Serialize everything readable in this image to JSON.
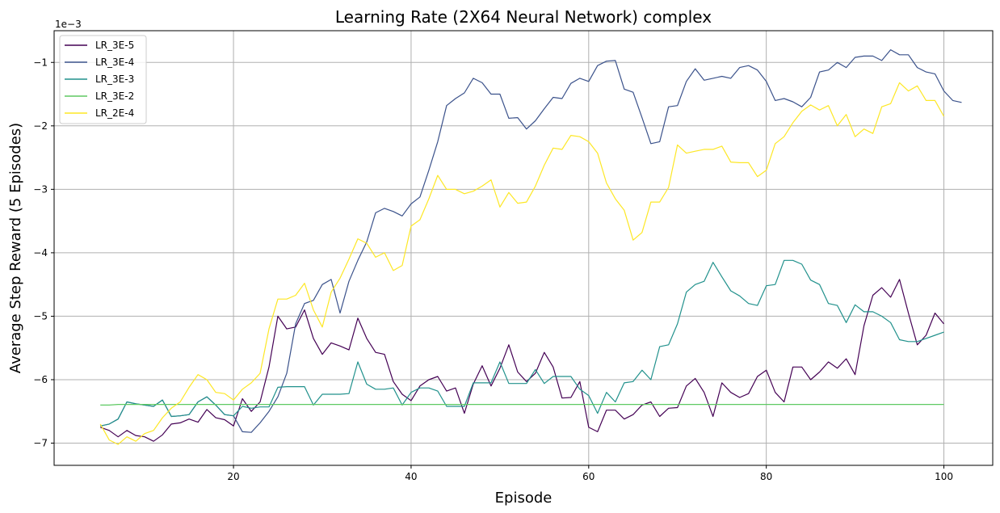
{
  "chart_data": {
    "type": "line",
    "title": "Learning Rate (2X64 Neural Network) complex",
    "xlabel": "Episode",
    "ylabel": "Average Step Reward (5 Episodes)",
    "y_offset_label": "1e−3",
    "xlim": [
      -0.2,
      105.5
    ],
    "ylim": [
      -7.35,
      -0.5
    ],
    "x_ticks": [
      20,
      40,
      60,
      80,
      100
    ],
    "y_ticks": [
      -7,
      -6,
      -5,
      -4,
      -3,
      -2,
      -1
    ],
    "grid": true,
    "legend_placement": "top-left",
    "x_start": 5,
    "series": [
      {
        "name": "LR_3E-5",
        "color": "#440154",
        "values": [
          -6.75,
          -6.8,
          -6.9,
          -6.8,
          -6.88,
          -6.9,
          -6.97,
          -6.87,
          -6.7,
          -6.68,
          -6.62,
          -6.67,
          -6.47,
          -6.6,
          -6.63,
          -6.73,
          -6.3,
          -6.5,
          -6.35,
          -5.8,
          -5.0,
          -5.2,
          -5.17,
          -4.9,
          -5.35,
          -5.6,
          -5.42,
          -5.47,
          -5.53,
          -5.03,
          -5.35,
          -5.57,
          -5.6,
          -6.03,
          -6.23,
          -6.33,
          -6.1,
          -6.0,
          -5.95,
          -6.18,
          -6.13,
          -6.53,
          -6.07,
          -5.78,
          -6.1,
          -5.82,
          -5.45,
          -5.88,
          -6.03,
          -5.9,
          -5.57,
          -5.8,
          -6.29,
          -6.28,
          -6.03,
          -6.75,
          -6.82,
          -6.48,
          -6.48,
          -6.62,
          -6.55,
          -6.4,
          -6.35,
          -6.58,
          -6.45,
          -6.44,
          -6.1,
          -5.98,
          -6.2,
          -6.58,
          -6.05,
          -6.2,
          -6.28,
          -6.22,
          -5.95,
          -5.85,
          -6.2,
          -6.35,
          -5.8,
          -5.8,
          -6.0,
          -5.88,
          -5.72,
          -5.82,
          -5.67,
          -5.92,
          -5.15,
          -4.67,
          -4.55,
          -4.7,
          -4.42,
          -4.95,
          -5.45,
          -5.3,
          -4.95,
          -5.12
        ]
      },
      {
        "name": "LR_3E-4",
        "color": "#3b528b",
        "values": [
          -6.73,
          -6.7,
          -6.62,
          -6.35,
          -6.38,
          -6.4,
          -6.42,
          -6.32,
          -6.58,
          -6.57,
          -6.55,
          -6.35,
          -6.27,
          -6.4,
          -6.55,
          -6.57,
          -6.82,
          -6.83,
          -6.68,
          -6.5,
          -6.27,
          -5.9,
          -5.12,
          -4.8,
          -4.75,
          -4.5,
          -4.42,
          -4.95,
          -4.45,
          -4.12,
          -3.83,
          -3.37,
          -3.3,
          -3.35,
          -3.42,
          -3.23,
          -3.12,
          -2.7,
          -2.25,
          -1.68,
          -1.57,
          -1.48,
          -1.25,
          -1.32,
          -1.5,
          -1.5,
          -1.88,
          -1.87,
          -2.05,
          -1.92,
          -1.73,
          -1.55,
          -1.57,
          -1.33,
          -1.25,
          -1.3,
          -1.05,
          -0.98,
          -0.97,
          -1.42,
          -1.47,
          -1.87,
          -2.28,
          -2.25,
          -1.7,
          -1.68,
          -1.3,
          -1.1,
          -1.28,
          -1.25,
          -1.22,
          -1.25,
          -1.08,
          -1.05,
          -1.12,
          -1.3,
          -1.6,
          -1.57,
          -1.62,
          -1.7,
          -1.55,
          -1.15,
          -1.12,
          -1.0,
          -1.08,
          -0.92,
          -0.9,
          -0.9,
          -0.97,
          -0.8,
          -0.88,
          -0.88,
          -1.08,
          -1.15,
          -1.18,
          -1.45,
          -1.6,
          -1.63
        ]
      },
      {
        "name": "LR_3E-3",
        "color": "#21918c",
        "values": [
          -6.73,
          -6.7,
          -6.62,
          -6.35,
          -6.38,
          -6.4,
          -6.42,
          -6.32,
          -6.58,
          -6.57,
          -6.55,
          -6.35,
          -6.27,
          -6.4,
          -6.55,
          -6.57,
          -6.42,
          -6.45,
          -6.43,
          -6.43,
          -6.12,
          -6.11,
          -6.11,
          -6.11,
          -6.4,
          -6.23,
          -6.23,
          -6.23,
          -6.22,
          -5.72,
          -6.07,
          -6.15,
          -6.15,
          -6.13,
          -6.4,
          -6.2,
          -6.13,
          -6.13,
          -6.18,
          -6.42,
          -6.42,
          -6.42,
          -6.05,
          -6.05,
          -6.05,
          -5.72,
          -6.06,
          -6.06,
          -6.06,
          -5.84,
          -6.06,
          -5.95,
          -5.95,
          -5.95,
          -6.15,
          -6.25,
          -6.53,
          -6.2,
          -6.35,
          -6.05,
          -6.03,
          -5.85,
          -6.0,
          -5.48,
          -5.45,
          -5.12,
          -4.62,
          -4.5,
          -4.45,
          -4.15,
          -4.38,
          -4.6,
          -4.68,
          -4.8,
          -4.83,
          -4.52,
          -4.5,
          -4.12,
          -4.12,
          -4.18,
          -4.43,
          -4.5,
          -4.8,
          -4.83,
          -5.1,
          -4.82,
          -4.93,
          -4.93,
          -5.0,
          -5.1,
          -5.37,
          -5.4,
          -5.4,
          -5.35,
          -5.3,
          -5.25
        ]
      },
      {
        "name": "LR_3E-2",
        "color": "#5ec962",
        "values": [
          -6.4,
          -6.4,
          -6.39,
          -6.39,
          -6.39,
          -6.39,
          -6.39,
          -6.39,
          -6.39,
          -6.39,
          -6.39,
          -6.39,
          -6.39,
          -6.39,
          -6.39,
          -6.39,
          -6.39,
          -6.39,
          -6.39,
          -6.39,
          -6.39,
          -6.39,
          -6.39,
          -6.39,
          -6.39,
          -6.39,
          -6.39,
          -6.39,
          -6.39,
          -6.39,
          -6.39,
          -6.39,
          -6.39,
          -6.39,
          -6.39,
          -6.39,
          -6.39,
          -6.39,
          -6.39,
          -6.39,
          -6.39,
          -6.39,
          -6.39,
          -6.39,
          -6.39,
          -6.39,
          -6.39,
          -6.39,
          -6.39,
          -6.39,
          -6.39,
          -6.39,
          -6.39,
          -6.39,
          -6.39,
          -6.39,
          -6.39,
          -6.39,
          -6.39,
          -6.39,
          -6.39,
          -6.39,
          -6.39,
          -6.39,
          -6.39,
          -6.39,
          -6.39,
          -6.39,
          -6.39,
          -6.39,
          -6.39,
          -6.39,
          -6.39,
          -6.39,
          -6.39,
          -6.39,
          -6.39,
          -6.39,
          -6.39,
          -6.39,
          -6.39,
          -6.39,
          -6.39,
          -6.39,
          -6.39,
          -6.39,
          -6.39,
          -6.39,
          -6.39,
          -6.39,
          -6.39,
          -6.39,
          -6.39,
          -6.39,
          -6.39,
          -6.39
        ]
      },
      {
        "name": "LR_2E-4",
        "color": "#fde725",
        "values": [
          -6.7,
          -6.95,
          -7.02,
          -6.9,
          -6.97,
          -6.85,
          -6.8,
          -6.6,
          -6.45,
          -6.35,
          -6.12,
          -5.92,
          -6.0,
          -6.2,
          -6.22,
          -6.32,
          -6.15,
          -6.05,
          -5.9,
          -5.2,
          -4.73,
          -4.73,
          -4.67,
          -4.48,
          -4.9,
          -5.17,
          -4.62,
          -4.4,
          -4.1,
          -3.78,
          -3.85,
          -4.07,
          -4.0,
          -4.28,
          -4.2,
          -3.58,
          -3.48,
          -3.15,
          -2.78,
          -3.0,
          -3.0,
          -3.07,
          -3.03,
          -2.95,
          -2.85,
          -3.28,
          -3.05,
          -3.22,
          -3.2,
          -2.95,
          -2.62,
          -2.35,
          -2.37,
          -2.15,
          -2.17,
          -2.25,
          -2.43,
          -2.9,
          -3.15,
          -3.33,
          -3.8,
          -3.68,
          -3.2,
          -3.2,
          -2.97,
          -2.3,
          -2.43,
          -2.4,
          -2.37,
          -2.37,
          -2.32,
          -2.57,
          -2.58,
          -2.58,
          -2.8,
          -2.7,
          -2.28,
          -2.17,
          -1.95,
          -1.77,
          -1.67,
          -1.75,
          -1.68,
          -2.0,
          -1.82,
          -2.17,
          -2.05,
          -2.12,
          -1.7,
          -1.65,
          -1.32,
          -1.45,
          -1.37,
          -1.6,
          -1.6,
          -1.85
        ]
      }
    ]
  }
}
